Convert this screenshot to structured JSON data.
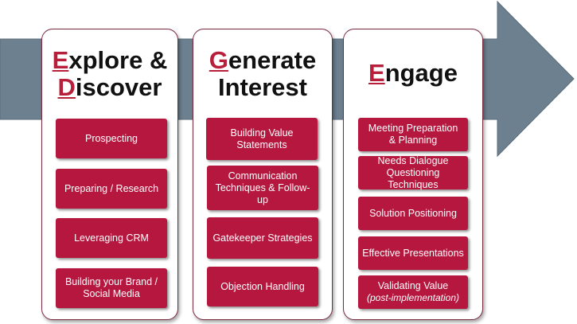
{
  "colors": {
    "arrow": "#6d8090",
    "panel_border": "#7a2b40",
    "box_fill": "#b5173e",
    "accent_letter": "#b81f3b"
  },
  "columns": [
    {
      "title_lines": [
        {
          "cap": "E",
          "rest": "xplore &"
        },
        {
          "cap": "D",
          "rest": "iscover"
        }
      ],
      "items": [
        {
          "text": "Prospecting"
        },
        {
          "text": "Preparing / Research"
        },
        {
          "text": "Leveraging CRM"
        },
        {
          "text": "Building your Brand / Social Media"
        }
      ]
    },
    {
      "title_lines": [
        {
          "cap": "G",
          "rest": "enerate"
        },
        {
          "cap": "",
          "rest": "Interest"
        }
      ],
      "items": [
        {
          "text": "Building Value Statements"
        },
        {
          "text": "Communication Techniques & Follow-up"
        },
        {
          "text": "Gatekeeper Strategies"
        },
        {
          "text": "Objection Handling"
        }
      ]
    },
    {
      "title_lines": [
        {
          "cap": "E",
          "rest": "ngage"
        }
      ],
      "items": [
        {
          "text": "Meeting Preparation & Planning"
        },
        {
          "text": "Needs Dialogue Questioning Techniques"
        },
        {
          "text": "Solution Positioning"
        },
        {
          "text": "Effective Presentations"
        },
        {
          "text": "Validating Value",
          "sub": "(post-implementation)"
        }
      ]
    }
  ]
}
